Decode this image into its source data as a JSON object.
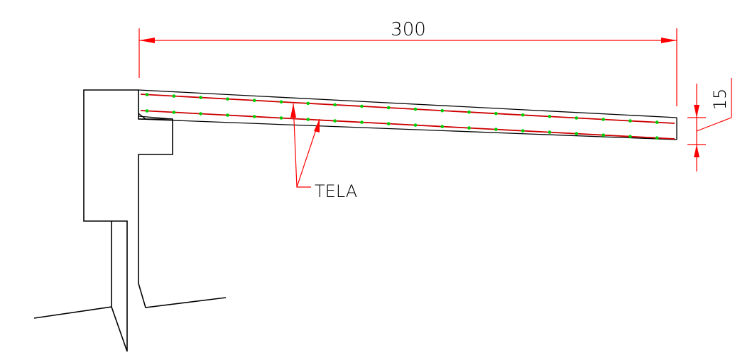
{
  "dimensions": {
    "span_label": "300",
    "thickness_label": "15"
  },
  "annotations": {
    "mesh_label": "TELA"
  },
  "colors": {
    "outline": "#000000",
    "dimension": "#ff0000",
    "rebar_line": "#cc0000",
    "rebar_dot": "#00cc00",
    "background": "#ffffff"
  },
  "rebar": {
    "top_row_count": 21,
    "bottom_row_count": 21
  }
}
